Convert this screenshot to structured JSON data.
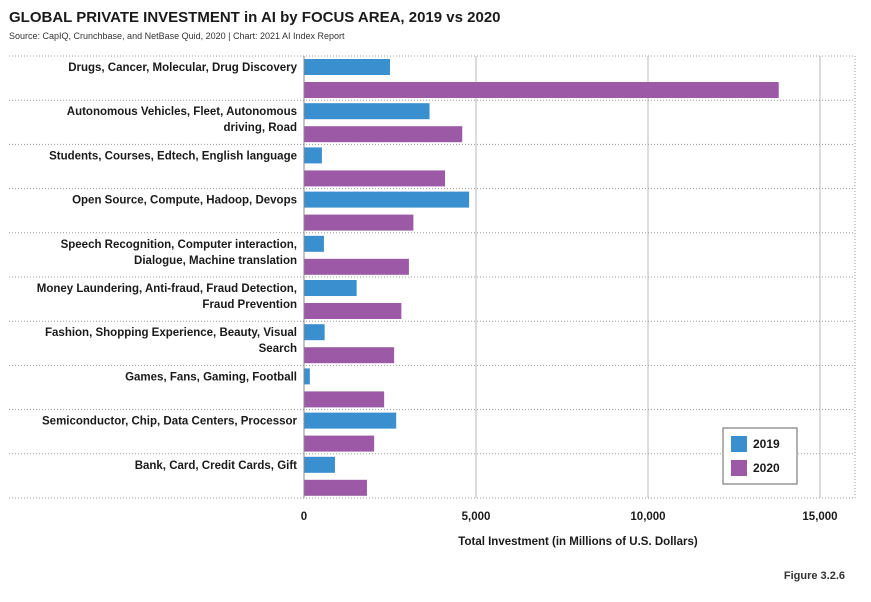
{
  "header": {
    "title": "GLOBAL PRIVATE INVESTMENT in AI by FOCUS AREA, 2019 vs 2020",
    "source": "Source: CapIQ, Crunchbase, and NetBase Quid, 2020 | Chart: 2021 AI Index Report"
  },
  "footer": {
    "figure": "Figure 3.2.6"
  },
  "chart_data": {
    "type": "bar",
    "orientation": "horizontal",
    "categories": [
      [
        "Drugs, Cancer, Molecular, Drug Discovery"
      ],
      [
        "Autonomous Vehicles, Fleet, Autonomous",
        "driving, Road"
      ],
      [
        "Students, Courses, Edtech, English language"
      ],
      [
        "Open Source, Compute, Hadoop, Devops"
      ],
      [
        "Speech Recognition, Computer interaction,",
        "Dialogue, Machine translation"
      ],
      [
        "Money Laundering, Anti-fraud, Fraud Detection,",
        "Fraud Prevention"
      ],
      [
        "Fashion, Shopping Experience, Beauty, Visual",
        "Search"
      ],
      [
        "Games, Fans, Gaming, Football"
      ],
      [
        "Semiconductor, Chip, Data Centers, Processor"
      ],
      [
        "Bank, Card, Credit Cards, Gift"
      ]
    ],
    "series": [
      {
        "name": "2019",
        "color": "#3a8fcf",
        "values": [
          2500,
          3650,
          520,
          4800,
          580,
          1530,
          600,
          170,
          2680,
          900
        ]
      },
      {
        "name": "2020",
        "color": "#9b59a6",
        "values": [
          13800,
          4600,
          4100,
          3180,
          3050,
          2830,
          2620,
          2330,
          2040,
          1830
        ]
      }
    ],
    "xlabel": "Total Investment (in Millions of U.S. Dollars)",
    "xlim": [
      0,
      16000
    ],
    "xticks": [
      0,
      5000,
      10000,
      15000
    ],
    "xtick_labels": [
      "0",
      "5,000",
      "10,000",
      "15,000"
    ],
    "grid": true,
    "legend_position": "bottom-right"
  }
}
